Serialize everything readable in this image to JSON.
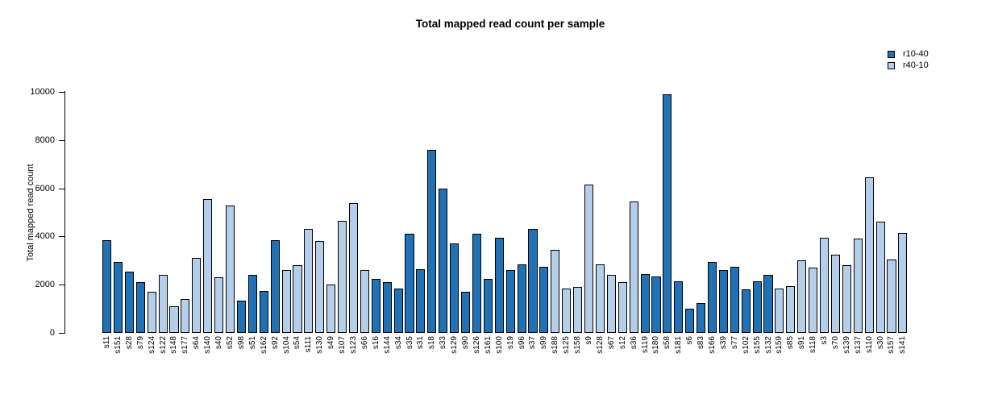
{
  "title": "Total mapped read count per sample",
  "legend": {
    "items": [
      {
        "label": "r10-40",
        "color": "#2171B5"
      },
      {
        "label": "r40-10",
        "color": "#B5CEEA"
      }
    ]
  },
  "chart_data": {
    "type": "bar",
    "title": "Total mapped read count per sample",
    "xlabel": "",
    "ylabel": "Total mapped read count",
    "ylim": [
      0,
      10000
    ],
    "yticks": [
      0,
      2000,
      4000,
      6000,
      8000,
      10000
    ],
    "grid": false,
    "legend_position": "top-right",
    "series": [
      {
        "name": "r10-40",
        "color": "#2171B5"
      },
      {
        "name": "r40-10",
        "color": "#B5CEEA"
      }
    ],
    "bars": [
      {
        "sample": "s11",
        "value": 3850,
        "group": "r10-40"
      },
      {
        "sample": "s151",
        "value": 2950,
        "group": "r10-40"
      },
      {
        "sample": "s28",
        "value": 2550,
        "group": "r10-40"
      },
      {
        "sample": "s79",
        "value": 2100,
        "group": "r10-40"
      },
      {
        "sample": "s124",
        "value": 1700,
        "group": "r40-10"
      },
      {
        "sample": "s122",
        "value": 2400,
        "group": "r40-10"
      },
      {
        "sample": "s148",
        "value": 1100,
        "group": "r40-10"
      },
      {
        "sample": "s177",
        "value": 1400,
        "group": "r40-10"
      },
      {
        "sample": "s64",
        "value": 3100,
        "group": "r40-10"
      },
      {
        "sample": "s140",
        "value": 5550,
        "group": "r40-10"
      },
      {
        "sample": "s40",
        "value": 2300,
        "group": "r40-10"
      },
      {
        "sample": "s52",
        "value": 5300,
        "group": "r40-10"
      },
      {
        "sample": "s98",
        "value": 1350,
        "group": "r10-40"
      },
      {
        "sample": "s51",
        "value": 2400,
        "group": "r10-40"
      },
      {
        "sample": "s162",
        "value": 1750,
        "group": "r10-40"
      },
      {
        "sample": "s92",
        "value": 3850,
        "group": "r10-40"
      },
      {
        "sample": "s104",
        "value": 2600,
        "group": "r40-10"
      },
      {
        "sample": "s54",
        "value": 2800,
        "group": "r40-10"
      },
      {
        "sample": "s111",
        "value": 4300,
        "group": "r40-10"
      },
      {
        "sample": "s130",
        "value": 3800,
        "group": "r40-10"
      },
      {
        "sample": "s49",
        "value": 2000,
        "group": "r40-10"
      },
      {
        "sample": "s107",
        "value": 4650,
        "group": "r40-10"
      },
      {
        "sample": "s123",
        "value": 5400,
        "group": "r40-10"
      },
      {
        "sample": "s66",
        "value": 2600,
        "group": "r40-10"
      },
      {
        "sample": "s16",
        "value": 2250,
        "group": "r10-40"
      },
      {
        "sample": "s144",
        "value": 2100,
        "group": "r10-40"
      },
      {
        "sample": "s34",
        "value": 1850,
        "group": "r10-40"
      },
      {
        "sample": "s35",
        "value": 4100,
        "group": "r10-40"
      },
      {
        "sample": "s31",
        "value": 2650,
        "group": "r10-40"
      },
      {
        "sample": "s18",
        "value": 7600,
        "group": "r10-40"
      },
      {
        "sample": "s33",
        "value": 6000,
        "group": "r10-40"
      },
      {
        "sample": "s129",
        "value": 3700,
        "group": "r10-40"
      },
      {
        "sample": "s90",
        "value": 1700,
        "group": "r10-40"
      },
      {
        "sample": "s126",
        "value": 4100,
        "group": "r10-40"
      },
      {
        "sample": "s161",
        "value": 2250,
        "group": "r10-40"
      },
      {
        "sample": "s100",
        "value": 3950,
        "group": "r10-40"
      },
      {
        "sample": "s19",
        "value": 2600,
        "group": "r10-40"
      },
      {
        "sample": "s96",
        "value": 2850,
        "group": "r10-40"
      },
      {
        "sample": "s37",
        "value": 4300,
        "group": "r10-40"
      },
      {
        "sample": "s99",
        "value": 2750,
        "group": "r10-40"
      },
      {
        "sample": "s188",
        "value": 3450,
        "group": "r40-10"
      },
      {
        "sample": "s125",
        "value": 1850,
        "group": "r40-10"
      },
      {
        "sample": "s158",
        "value": 1900,
        "group": "r40-10"
      },
      {
        "sample": "s9",
        "value": 6150,
        "group": "r40-10"
      },
      {
        "sample": "s128",
        "value": 2850,
        "group": "r40-10"
      },
      {
        "sample": "s67",
        "value": 2400,
        "group": "r40-10"
      },
      {
        "sample": "s12",
        "value": 2100,
        "group": "r40-10"
      },
      {
        "sample": "s36",
        "value": 5450,
        "group": "r40-10"
      },
      {
        "sample": "s119",
        "value": 2450,
        "group": "r10-40"
      },
      {
        "sample": "s180",
        "value": 2350,
        "group": "r10-40"
      },
      {
        "sample": "s58",
        "value": 9900,
        "group": "r10-40"
      },
      {
        "sample": "s181",
        "value": 2150,
        "group": "r10-40"
      },
      {
        "sample": "s6",
        "value": 1000,
        "group": "r10-40"
      },
      {
        "sample": "s83",
        "value": 1250,
        "group": "r10-40"
      },
      {
        "sample": "s166",
        "value": 2950,
        "group": "r10-40"
      },
      {
        "sample": "s39",
        "value": 2600,
        "group": "r10-40"
      },
      {
        "sample": "s77",
        "value": 2750,
        "group": "r10-40"
      },
      {
        "sample": "s102",
        "value": 1800,
        "group": "r10-40"
      },
      {
        "sample": "s155",
        "value": 2150,
        "group": "r10-40"
      },
      {
        "sample": "s132",
        "value": 2400,
        "group": "r10-40"
      },
      {
        "sample": "s159",
        "value": 1850,
        "group": "r40-10"
      },
      {
        "sample": "s85",
        "value": 1950,
        "group": "r40-10"
      },
      {
        "sample": "s91",
        "value": 3000,
        "group": "r40-10"
      },
      {
        "sample": "s118",
        "value": 2700,
        "group": "r40-10"
      },
      {
        "sample": "s3",
        "value": 3950,
        "group": "r40-10"
      },
      {
        "sample": "s70",
        "value": 3250,
        "group": "r40-10"
      },
      {
        "sample": "s139",
        "value": 2800,
        "group": "r40-10"
      },
      {
        "sample": "s137",
        "value": 3900,
        "group": "r40-10"
      },
      {
        "sample": "s110",
        "value": 6450,
        "group": "r40-10"
      },
      {
        "sample": "s30",
        "value": 4600,
        "group": "r40-10"
      },
      {
        "sample": "s157",
        "value": 3050,
        "group": "r40-10"
      },
      {
        "sample": "s141",
        "value": 4150,
        "group": "r40-10"
      }
    ]
  }
}
